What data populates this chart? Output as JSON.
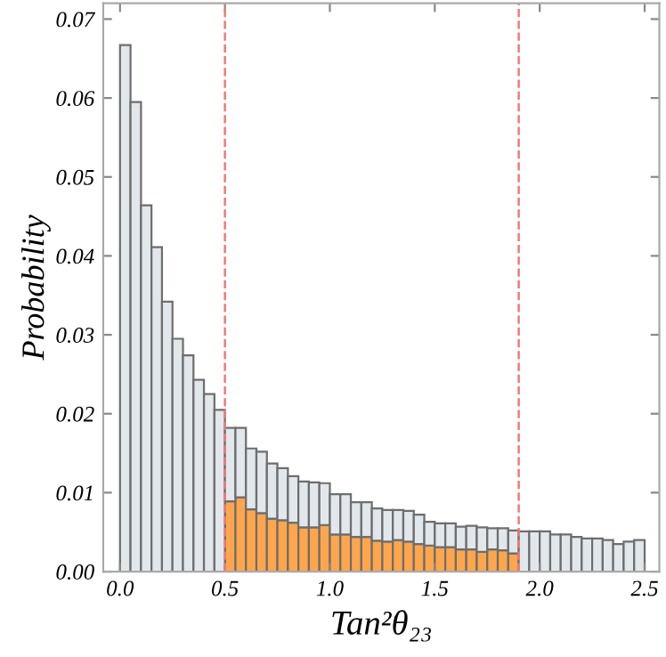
{
  "chart_data": {
    "type": "bar",
    "xlabel": "Tan²θ₂₃",
    "ylabel": "Probability",
    "x": [
      0.025,
      0.075,
      0.125,
      0.175,
      0.225,
      0.275,
      0.325,
      0.375,
      0.425,
      0.475,
      0.525,
      0.575,
      0.625,
      0.675,
      0.725,
      0.775,
      0.825,
      0.875,
      0.925,
      0.975,
      1.025,
      1.075,
      1.125,
      1.175,
      1.225,
      1.275,
      1.325,
      1.375,
      1.425,
      1.475,
      1.525,
      1.575,
      1.625,
      1.675,
      1.725,
      1.775,
      1.825,
      1.875,
      1.925,
      1.975,
      2.025,
      2.075,
      2.125,
      2.175,
      2.225,
      2.275,
      2.325,
      2.375,
      2.425,
      2.475
    ],
    "series": [
      {
        "color": "#ffa64d",
        "values": [
          null,
          null,
          null,
          null,
          null,
          null,
          null,
          null,
          null,
          null,
          0.0089,
          0.0094,
          0.0079,
          0.0074,
          0.0067,
          0.0065,
          0.0062,
          0.0056,
          0.0056,
          0.0059,
          0.0047,
          0.0047,
          0.0044,
          0.0044,
          0.0039,
          0.0038,
          0.004,
          0.0038,
          0.0035,
          0.0033,
          0.0031,
          0.0031,
          0.0028,
          0.0028,
          0.0025,
          0.0028,
          0.0027,
          0.0023,
          null,
          null,
          null,
          null,
          null,
          null,
          null,
          null,
          null,
          null,
          null,
          null
        ]
      },
      {
        "color": "#e1e7ea",
        "values": [
          0.0667,
          0.0595,
          0.0464,
          0.0411,
          0.0342,
          0.0295,
          0.0274,
          0.0243,
          0.0225,
          0.0205,
          0.0093,
          0.0088,
          0.0077,
          0.0078,
          0.007,
          0.0066,
          0.0059,
          0.0058,
          0.0057,
          0.0053,
          0.0051,
          0.0051,
          0.0044,
          0.0044,
          0.0041,
          0.004,
          0.0038,
          0.0039,
          0.0037,
          0.003,
          0.003,
          0.003,
          0.0029,
          0.003,
          0.0031,
          0.0027,
          0.0028,
          0.0029,
          0.0051,
          0.0051,
          0.0051,
          0.0047,
          0.0047,
          0.0044,
          0.0042,
          0.0042,
          0.004,
          0.0035,
          0.0038,
          0.004
        ]
      }
    ],
    "stacked": true,
    "xlim": [
      -0.08,
      2.57
    ],
    "ylim": [
      0,
      0.072
    ],
    "xticks": [
      {
        "value": 0,
        "label": "0.0"
      },
      {
        "value": 0.5,
        "label": "0.5"
      },
      {
        "value": 1,
        "label": "1.0"
      },
      {
        "value": 1.5,
        "label": "1.5"
      },
      {
        "value": 2,
        "label": "2.0"
      },
      {
        "value": 2.5,
        "label": "2.5"
      }
    ],
    "yticks": [
      {
        "value": 0,
        "label": "0.00"
      },
      {
        "value": 0.01,
        "label": "0.01"
      },
      {
        "value": 0.02,
        "label": "0.02"
      },
      {
        "value": 0.03,
        "label": "0.03"
      },
      {
        "value": 0.04,
        "label": "0.04"
      },
      {
        "value": 0.05,
        "label": "0.05"
      },
      {
        "value": 0.06,
        "label": "0.06"
      },
      {
        "value": 0.07,
        "label": "0.07"
      }
    ],
    "ref_lines": [
      {
        "axis": "x",
        "value": 0.5,
        "color": "#f07a7a",
        "line_style": "dashed"
      },
      {
        "axis": "x",
        "value": 1.9,
        "color": "#f07a7a",
        "line_style": "dashed"
      }
    ],
    "grid": false
  }
}
